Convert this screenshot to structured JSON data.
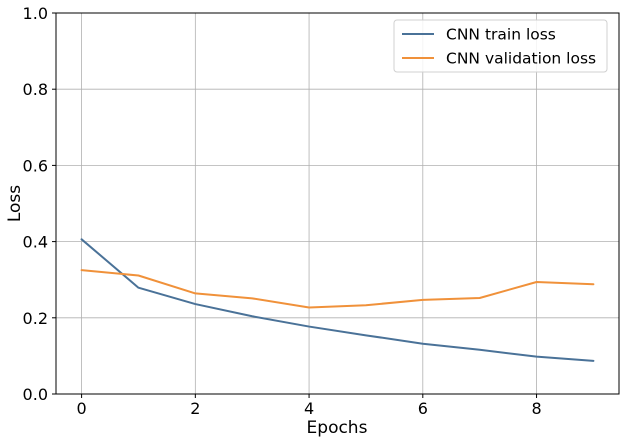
{
  "chart_data": {
    "type": "line",
    "title": "",
    "xlabel": "Epochs",
    "ylabel": "Loss",
    "xlim": [
      -0.45,
      9.45
    ],
    "ylim": [
      0.0,
      1.0
    ],
    "xticks": [
      0,
      2,
      4,
      6,
      8
    ],
    "yticks": [
      0.0,
      0.2,
      0.4,
      0.6,
      0.8,
      1.0
    ],
    "xtick_labels": [
      "0",
      "2",
      "4",
      "6",
      "8"
    ],
    "ytick_labels": [
      "0.0",
      "0.2",
      "0.4",
      "0.6",
      "0.8",
      "1.0"
    ],
    "grid": true,
    "legend_position": "top-right",
    "x": [
      0,
      1,
      2,
      3,
      4,
      5,
      6,
      7,
      8,
      9
    ],
    "series": [
      {
        "name": "CNN train loss",
        "color": "#4a7298",
        "values": [
          0.406,
          0.279,
          0.236,
          0.204,
          0.177,
          0.154,
          0.132,
          0.116,
          0.098,
          0.087
        ]
      },
      {
        "name": "CNN validation loss",
        "color": "#f0913a",
        "values": [
          0.325,
          0.311,
          0.264,
          0.251,
          0.227,
          0.233,
          0.247,
          0.252,
          0.294,
          0.288
        ]
      }
    ]
  }
}
